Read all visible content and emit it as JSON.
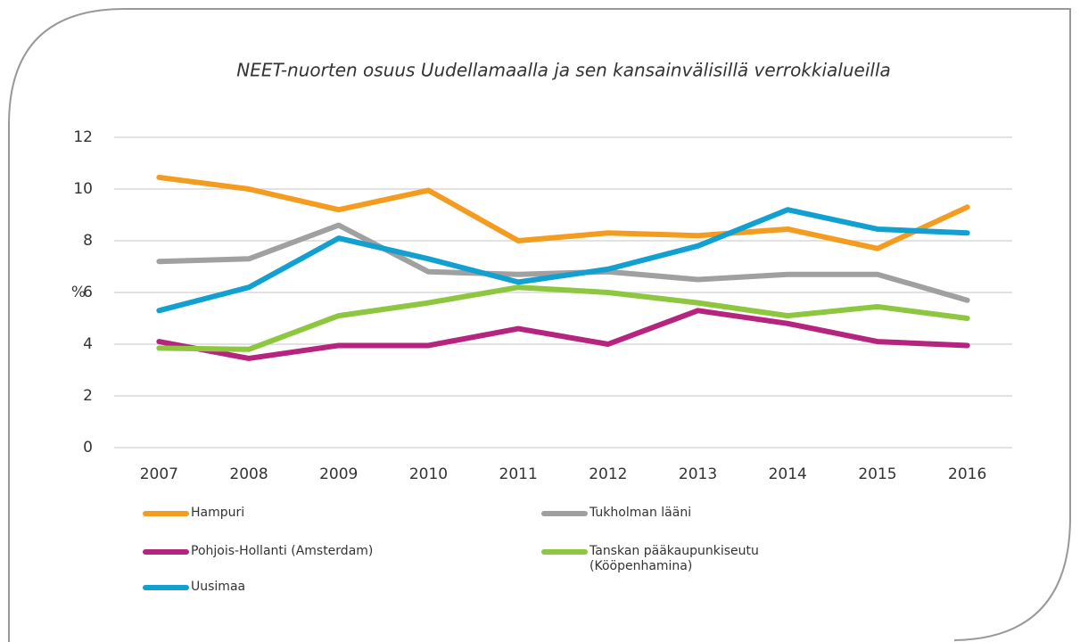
{
  "chart_data": {
    "type": "line",
    "title": "NEET-nuorten osuus Uudellamaalla ja sen kansainvälisillä verrokkialueilla",
    "y_label": "%",
    "categories": [
      "2007",
      "2008",
      "2009",
      "2010",
      "2011",
      "2012",
      "2013",
      "2014",
      "2015",
      "2016"
    ],
    "series": [
      {
        "name": "Hampuri",
        "color": "#f39c1f",
        "values": [
          10.45,
          10.0,
          9.2,
          9.95,
          8.0,
          8.3,
          8.2,
          8.45,
          7.7,
          9.3
        ]
      },
      {
        "name": "Tukholman lääni",
        "color": "#a0a0a0",
        "values": [
          7.2,
          7.3,
          8.6,
          6.8,
          6.7,
          6.8,
          6.5,
          6.7,
          6.7,
          5.7
        ]
      },
      {
        "name": "Pohjois-Hollanti (Amsterdam)",
        "color": "#b5247e",
        "values": [
          4.1,
          3.45,
          3.95,
          3.95,
          4.6,
          4.0,
          5.3,
          4.8,
          4.1,
          3.95
        ]
      },
      {
        "name": "Tanskan pääkaupunkiseutu (Kööpenhamina)",
        "color": "#8dc63f",
        "values": [
          3.85,
          3.8,
          5.1,
          5.6,
          6.2,
          6.0,
          5.6,
          5.1,
          5.45,
          5.0
        ]
      },
      {
        "name": "Uusimaa",
        "color": "#11a0d0",
        "values": [
          5.3,
          6.2,
          8.1,
          7.3,
          6.4,
          6.9,
          7.8,
          9.2,
          8.45,
          8.3
        ]
      }
    ],
    "ylim": [
      0,
      12
    ],
    "yticks": [
      0,
      2,
      4,
      6,
      8,
      10,
      12
    ],
    "grid": true,
    "legend": "bottom"
  }
}
